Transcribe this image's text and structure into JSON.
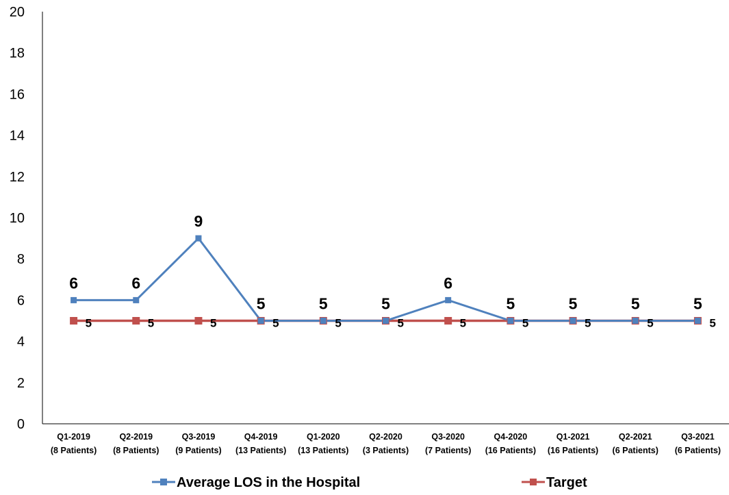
{
  "chart_data": {
    "type": "line",
    "categories": [
      [
        "Q1-2019",
        "(8 Patients)"
      ],
      [
        "Q2-2019",
        "(8 Patients)"
      ],
      [
        "Q3-2019",
        "(9 Patients)"
      ],
      [
        "Q4-2019",
        "(13 Patients)"
      ],
      [
        "Q1-2020",
        "(13 Patients)"
      ],
      [
        "Q2-2020",
        "(3 Patients)"
      ],
      [
        "Q3-2020",
        "(7 Patients)"
      ],
      [
        "Q4-2020",
        "(16 Patients)"
      ],
      [
        "Q1-2021",
        "(16 Patients)"
      ],
      [
        "Q2-2021",
        "(6 Patients)"
      ],
      [
        "Q3-2021",
        "(6 Patients)"
      ]
    ],
    "series": [
      {
        "name": "Average LOS in the Hospital",
        "values": [
          6,
          6,
          9,
          5,
          5,
          5,
          6,
          5,
          5,
          5,
          5
        ],
        "color": "#4f81bd",
        "marker": "square"
      },
      {
        "name": "Target",
        "values": [
          5,
          5,
          5,
          5,
          5,
          5,
          5,
          5,
          5,
          5,
          5
        ],
        "color": "#c0504d",
        "marker": "square"
      }
    ],
    "ylim": [
      0,
      20
    ],
    "yticks": [
      0,
      2,
      4,
      6,
      8,
      10,
      12,
      14,
      16,
      18,
      20
    ],
    "grid": false,
    "legend": "bottom"
  }
}
